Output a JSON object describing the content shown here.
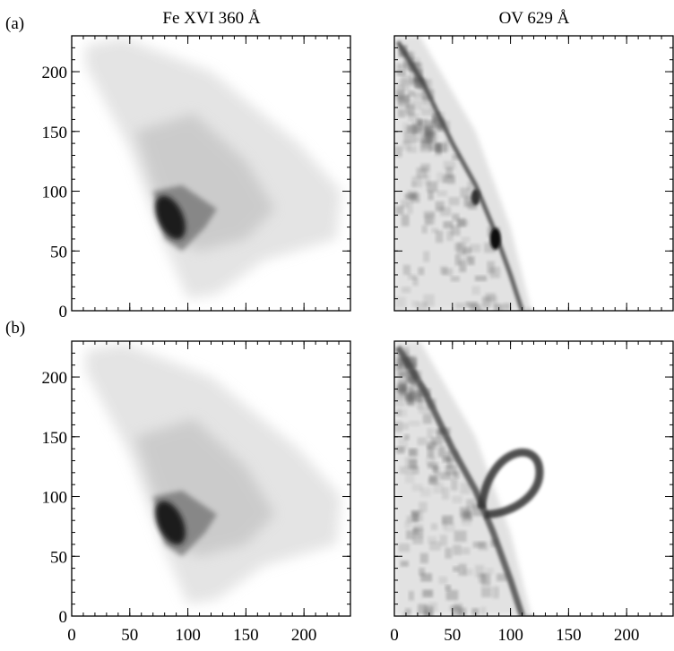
{
  "figure": {
    "row_labels": [
      "(a)",
      "(b)"
    ],
    "column_titles": [
      "Fe XVI 360 Å",
      "OV 629 Å"
    ],
    "xlim": [
      0,
      240
    ],
    "ylim": [
      0,
      230
    ],
    "xticks": [
      0,
      50,
      100,
      150,
      200
    ],
    "yticks": [
      0,
      50,
      100,
      150,
      200
    ]
  }
}
